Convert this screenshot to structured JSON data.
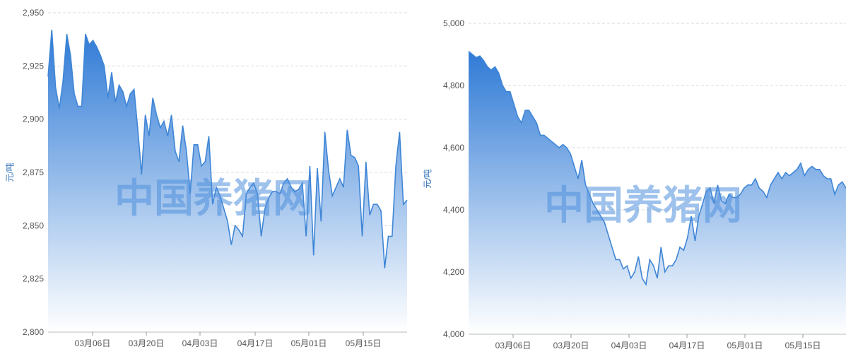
{
  "watermark": "中国养猪网",
  "colors": {
    "line": "#3f86d6",
    "fill_top": "#2f7ad6",
    "fill_bottom": "#ffffff",
    "grid": "#d9d9d9",
    "tick": "#555555",
    "watermark": "#4f8fdc"
  },
  "chart_data": [
    {
      "type": "area",
      "ylabel": "元/吨",
      "ylim": [
        2800,
        2950
      ],
      "yticks": [
        "2,800",
        "2,825",
        "2,850",
        "2,875",
        "2,900",
        "2,925",
        "2,950"
      ],
      "xticks": [
        "03月06日",
        "03月20日",
        "04月03日",
        "04月17日",
        "05月01日",
        "05月15日"
      ],
      "grid": true,
      "y": [
        2920,
        2942,
        2915,
        2905,
        2918,
        2940,
        2930,
        2912,
        2906,
        2906,
        2940,
        2935,
        2937,
        2934,
        2930,
        2925,
        2910,
        2922,
        2908,
        2916,
        2913,
        2906,
        2912,
        2914,
        2895,
        2874,
        2902,
        2892,
        2910,
        2902,
        2896,
        2899,
        2892,
        2902,
        2885,
        2880,
        2897,
        2885,
        2865,
        2888,
        2888,
        2878,
        2880,
        2892,
        2860,
        2868,
        2864,
        2858,
        2852,
        2841,
        2850,
        2848,
        2845,
        2865,
        2868,
        2870,
        2865,
        2845,
        2858,
        2863,
        2866,
        2866,
        2865,
        2870,
        2872,
        2868,
        2866,
        2867,
        2870,
        2845,
        2878,
        2836,
        2877,
        2852,
        2894,
        2876,
        2864,
        2868,
        2872,
        2868,
        2895,
        2883,
        2882,
        2878,
        2845,
        2880,
        2855,
        2860,
        2860,
        2857,
        2830,
        2845,
        2845,
        2878,
        2894,
        2860,
        2862
      ]
    },
    {
      "type": "area",
      "ylabel": "元/吨",
      "ylim": [
        4000,
        5000
      ],
      "yticks": [
        "4,000",
        "4,200",
        "4,400",
        "4,600",
        "4,800",
        "5,000"
      ],
      "xticks": [
        "03月06日",
        "03月20日",
        "04月03日",
        "04月17日",
        "05月01日",
        "05月15日"
      ],
      "grid": true,
      "y": [
        4910,
        4900,
        4890,
        4895,
        4880,
        4860,
        4850,
        4860,
        4840,
        4800,
        4780,
        4780,
        4740,
        4700,
        4680,
        4720,
        4720,
        4700,
        4680,
        4640,
        4640,
        4630,
        4620,
        4610,
        4600,
        4610,
        4600,
        4580,
        4540,
        4500,
        4560,
        4480,
        4450,
        4420,
        4400,
        4380,
        4360,
        4320,
        4280,
        4240,
        4240,
        4210,
        4220,
        4180,
        4200,
        4250,
        4180,
        4160,
        4240,
        4220,
        4180,
        4280,
        4200,
        4220,
        4220,
        4240,
        4280,
        4270,
        4310,
        4380,
        4300,
        4380,
        4420,
        4460,
        4470,
        4420,
        4480,
        4430,
        4420,
        4450,
        4440,
        4440,
        4450,
        4470,
        4480,
        4480,
        4500,
        4470,
        4460,
        4440,
        4480,
        4500,
        4520,
        4500,
        4520,
        4510,
        4520,
        4530,
        4550,
        4510,
        4530,
        4540,
        4530,
        4530,
        4510,
        4500,
        4500,
        4450,
        4480,
        4490,
        4470
      ]
    }
  ]
}
